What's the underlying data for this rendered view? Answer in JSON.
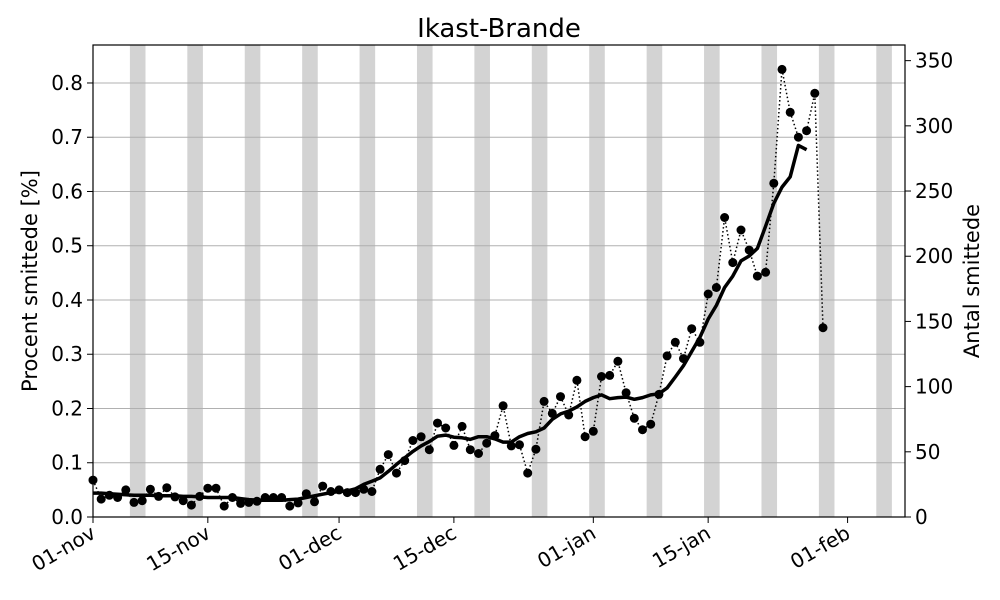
{
  "chart_data": {
    "type": "line",
    "title": "Ikast-Brande",
    "ylabel_left": "Procent smittede [%]",
    "ylabel_right": "Antal smittede",
    "x_start": "01-nov",
    "x_end": "08-feb",
    "ylim_left": [
      0,
      0.87
    ],
    "ylim_right": [
      0,
      362
    ],
    "yticks_left": [
      "0.0",
      "0.1",
      "0.2",
      "0.3",
      "0.4",
      "0.5",
      "0.6",
      "0.7",
      "0.8"
    ],
    "yticks_right": [
      "0",
      "50",
      "100",
      "150",
      "200",
      "250",
      "300",
      "350"
    ],
    "xtick_labels": [
      "01-nov",
      "15-nov",
      "01-dec",
      "15-dec",
      "01-jan",
      "15-jan",
      "01-feb"
    ],
    "grid": "horizontal",
    "weekend_bands": [
      "06-nov",
      "13-nov",
      "20-nov",
      "27-nov",
      "04-dec",
      "11-dec",
      "18-dec",
      "25-dec",
      "01-jan",
      "08-jan",
      "15-jan",
      "22-jan",
      "29-jan",
      "05-feb"
    ],
    "colors": {
      "series": "#000000",
      "band": "#d3d3d3",
      "grid": "#b0b0b0"
    },
    "series": [
      {
        "style": "dotted-markers",
        "values": [
          0.068,
          0.033,
          0.04,
          0.036,
          0.05,
          0.027,
          0.03,
          0.051,
          0.038,
          0.054,
          0.037,
          0.03,
          0.022,
          0.038,
          0.053,
          0.053,
          0.02,
          0.036,
          0.025,
          0.027,
          0.029,
          0.036,
          0.036,
          0.036,
          0.02,
          0.026,
          0.043,
          0.028,
          0.057,
          0.047,
          0.05,
          0.045,
          0.045,
          0.051,
          0.047,
          0.088,
          0.115,
          0.081,
          0.104,
          0.141,
          0.148,
          0.124,
          0.173,
          0.164,
          0.132,
          0.167,
          0.124,
          0.117,
          0.136,
          0.15,
          0.205,
          0.131,
          0.133,
          0.081,
          0.125,
          0.213,
          0.191,
          0.222,
          0.188,
          0.252,
          0.148,
          0.158,
          0.259,
          0.261,
          0.287,
          0.229,
          0.182,
          0.161,
          0.171,
          0.226,
          0.297,
          0.322,
          0.292,
          0.347,
          0.322,
          0.411,
          0.423,
          0.552,
          0.469,
          0.529,
          0.492,
          0.444,
          0.451,
          0.615,
          0.825,
          0.746,
          0.7,
          0.712,
          0.781,
          0.349
        ]
      },
      {
        "style": "solid-thick",
        "values": [
          0.044,
          0.044,
          0.043,
          0.042,
          0.041,
          0.04,
          0.04,
          0.04,
          0.039,
          0.039,
          0.039,
          0.038,
          0.038,
          0.037,
          0.036,
          0.036,
          0.036,
          0.036,
          0.034,
          0.032,
          0.031,
          0.031,
          0.031,
          0.031,
          0.032,
          0.033,
          0.036,
          0.039,
          0.042,
          0.045,
          0.047,
          0.048,
          0.052,
          0.06,
          0.066,
          0.072,
          0.084,
          0.097,
          0.109,
          0.121,
          0.131,
          0.139,
          0.149,
          0.151,
          0.147,
          0.146,
          0.143,
          0.148,
          0.148,
          0.144,
          0.138,
          0.138,
          0.148,
          0.154,
          0.157,
          0.164,
          0.18,
          0.19,
          0.195,
          0.203,
          0.213,
          0.22,
          0.225,
          0.218,
          0.22,
          0.221,
          0.217,
          0.22,
          0.225,
          0.227,
          0.238,
          0.258,
          0.279,
          0.305,
          0.331,
          0.365,
          0.39,
          0.423,
          0.444,
          0.472,
          0.481,
          0.495,
          0.536,
          0.578,
          0.608,
          0.627,
          0.685,
          0.677
        ]
      }
    ]
  }
}
